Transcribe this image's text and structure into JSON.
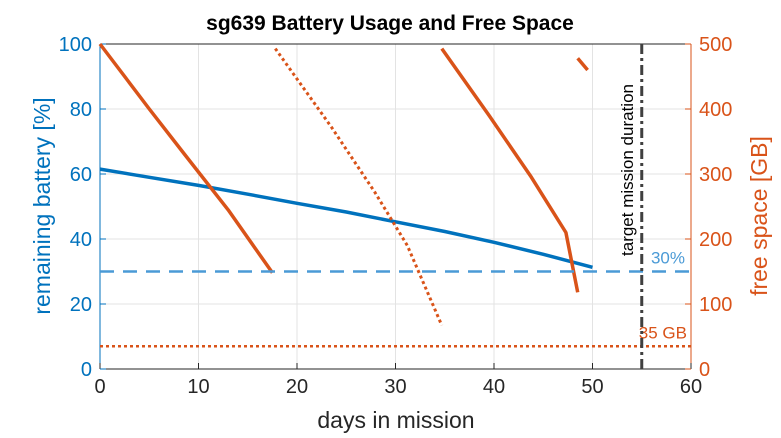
{
  "chart_data": {
    "type": "line",
    "title": "sg639 Battery Usage and Free Space",
    "xlabel": "days in mission",
    "ylabel_left": "remaining battery [%]",
    "ylabel_right": "free space [GB]",
    "xlim": [
      0,
      60
    ],
    "ylim_left": [
      0,
      100
    ],
    "ylim_right": [
      0,
      500
    ],
    "xticks": [
      "0",
      "10",
      "20",
      "30",
      "40",
      "50",
      "60"
    ],
    "yticks_left": [
      "0",
      "20",
      "40",
      "60",
      "80",
      "100"
    ],
    "yticks_right": [
      "0",
      "100",
      "200",
      "300",
      "400",
      "500"
    ],
    "grid": true,
    "colors": {
      "battery": "#0072bd",
      "battery_threshold": "#4a9ad6",
      "free_space": "#d95319",
      "target": "#404040"
    },
    "series": [
      {
        "axis": "left",
        "style": "solid",
        "color": "#0072bd",
        "x": [
          0,
          5,
          10,
          15,
          20,
          25,
          30,
          35,
          40,
          45,
          50
        ],
        "y": [
          61.5,
          59,
          56.5,
          53.8,
          51,
          48.3,
          45.3,
          42.3,
          39.0,
          35.3,
          31.3
        ]
      },
      {
        "axis": "right",
        "style": "solid",
        "color": "#d95319",
        "x": [
          0,
          1.5,
          5,
          8.6,
          13,
          17.5
        ],
        "y": [
          500,
          470,
          400,
          330,
          245,
          148
        ]
      },
      {
        "axis": "right",
        "style": "dotted",
        "color": "#d95319",
        "x": [
          17.8,
          23.5,
          27.9,
          31.2,
          34.7
        ],
        "y": [
          493,
          372,
          272,
          190,
          67
        ]
      },
      {
        "axis": "right",
        "style": "solid",
        "color": "#d95319",
        "x": [
          34.7,
          39.5,
          43.8,
          47.3,
          48.5
        ],
        "y": [
          493,
          390,
          295,
          210,
          118
        ]
      },
      {
        "axis": "right",
        "style": "solid",
        "color": "#d95319",
        "x": [
          48.5,
          49.5
        ],
        "y": [
          478,
          460
        ]
      }
    ],
    "reference_lines": [
      {
        "axis": "left",
        "orientation": "horizontal",
        "value": 30,
        "style": "dashed",
        "color": "#4a9ad6",
        "label": "30%"
      },
      {
        "axis": "right",
        "orientation": "horizontal",
        "value": 35,
        "style": "dotted",
        "color": "#d95319",
        "label": "35 GB"
      },
      {
        "orientation": "vertical",
        "value": 55,
        "style": "dashdot",
        "color": "#404040",
        "label": "target mission duration"
      }
    ]
  }
}
